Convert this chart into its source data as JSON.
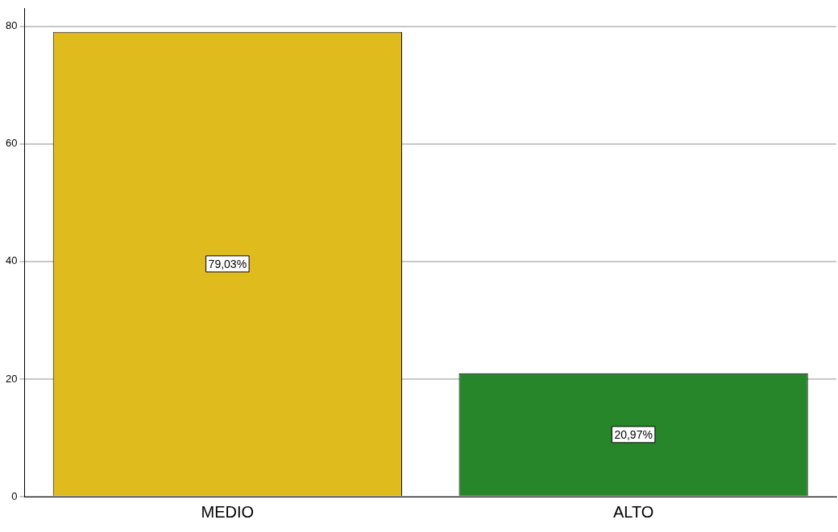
{
  "chart_data": {
    "type": "bar",
    "categories": [
      "MEDIO",
      "ALTO"
    ],
    "values": [
      79.03,
      20.97
    ],
    "colors": [
      "#e0bb1e",
      "#28862a"
    ],
    "value_labels": [
      "79,03%",
      "20,97%"
    ],
    "ylim": [
      0,
      83
    ],
    "yticks": [
      0,
      20,
      40,
      60,
      80
    ],
    "grid": "y",
    "legend": false
  }
}
